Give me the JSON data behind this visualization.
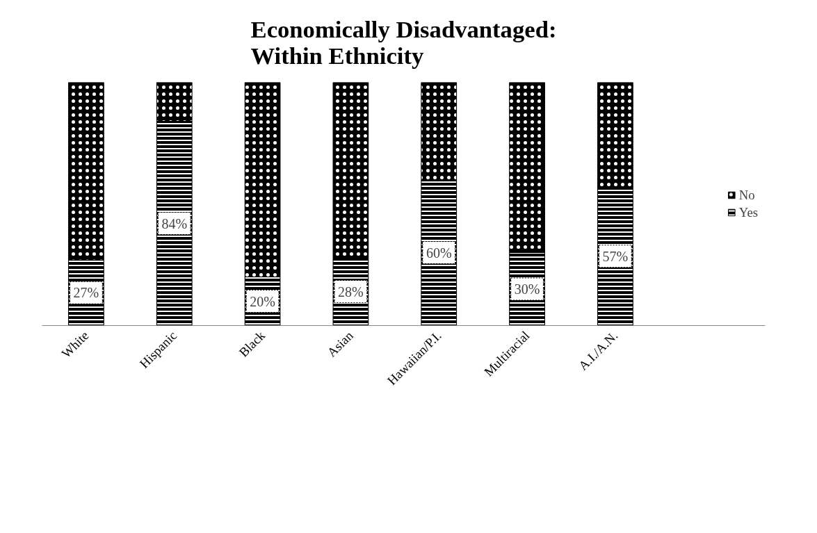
{
  "chart_data": {
    "type": "bar",
    "title": "Economically Disadvantaged:  Within Ethnicity",
    "categories": [
      "White",
      "Hispanic",
      "Black",
      "Asian",
      "Hawaiian/P.I.",
      "Multiracial",
      "A.I./A.N."
    ],
    "stacked": true,
    "tick_labels": "x",
    "legend": "right",
    "grid": false,
    "series": [
      {
        "name": "Yes",
        "color": "#000000",
        "values": [
          27,
          84,
          20,
          28,
          60,
          30,
          57
        ],
        "value_labels": [
          "27%",
          "84%",
          "20%",
          "28%",
          "60%",
          "30%",
          "57%"
        ]
      },
      {
        "name": "No",
        "color": "#000000",
        "values": [
          73,
          16,
          80,
          72,
          40,
          70,
          43
        ]
      }
    ]
  }
}
